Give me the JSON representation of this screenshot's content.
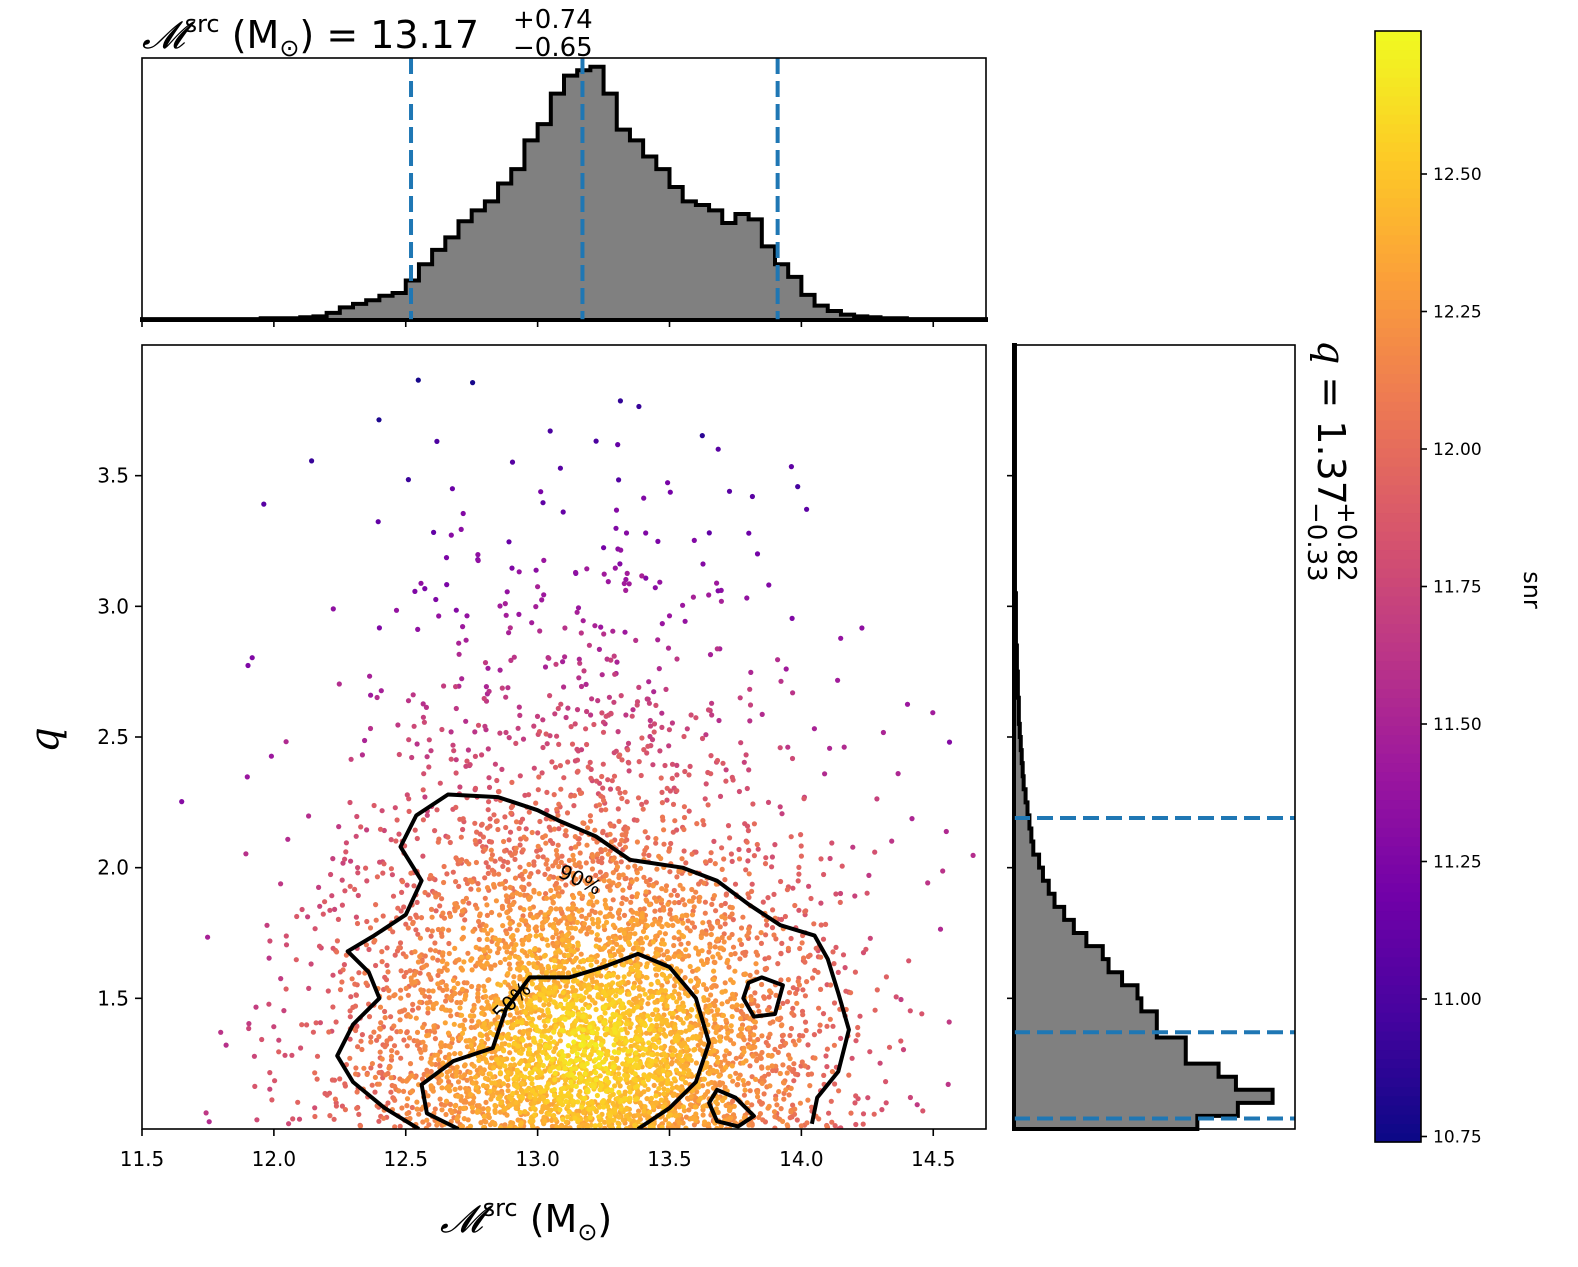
{
  "chart_data": [
    {
      "type": "histogram",
      "panel": "top-marginal",
      "title": {
        "symbol": "𝓜",
        "sup": "src",
        "unit": " (M",
        "unit_sub": "⊙",
        "unit_close": ")",
        "eq": " = ",
        "value": "13.17",
        "plus": "+0.74",
        "minus": "−0.65"
      },
      "bin_edges": [
        11.5,
        11.55,
        11.6,
        11.65,
        11.7,
        11.75,
        11.8,
        11.85,
        11.9,
        11.95,
        12.0,
        12.05,
        12.1,
        12.15,
        12.2,
        12.25,
        12.3,
        12.35,
        12.4,
        12.45,
        12.5,
        12.55,
        12.6,
        12.65,
        12.7,
        12.75,
        12.8,
        12.85,
        12.9,
        12.95,
        13.0,
        13.05,
        13.1,
        13.15,
        13.2,
        13.25,
        13.3,
        13.35,
        13.4,
        13.45,
        13.5,
        13.55,
        13.6,
        13.65,
        13.7,
        13.75,
        13.8,
        13.85,
        13.9,
        13.95,
        14.0,
        14.05,
        14.1,
        14.15,
        14.2,
        14.25,
        14.3,
        14.35,
        14.4,
        14.45,
        14.5,
        14.55,
        14.6,
        14.65,
        14.7
      ],
      "counts": [
        1,
        1,
        1,
        1,
        1,
        1,
        1,
        1,
        1,
        2,
        2,
        2,
        3,
        4,
        8,
        14,
        18,
        22,
        27,
        30,
        44,
        62,
        78,
        92,
        110,
        122,
        132,
        152,
        168,
        200,
        218,
        252,
        272,
        278,
        282,
        252,
        212,
        200,
        182,
        168,
        148,
        132,
        128,
        122,
        108,
        118,
        112,
        82,
        62,
        48,
        28,
        16,
        10,
        6,
        4,
        3,
        2,
        2,
        1,
        1,
        1,
        1,
        1,
        1
      ],
      "ylim": [
        0,
        285
      ],
      "xlim": [
        11.5,
        14.7
      ],
      "quantile_lines": [
        12.52,
        13.17,
        13.91
      ],
      "xticks": [
        11.5,
        12.0,
        12.5,
        13.0,
        13.5,
        14.0,
        14.5
      ]
    },
    {
      "type": "histogram",
      "panel": "right-marginal",
      "orientation": "horizontal",
      "title": {
        "symbol": "q",
        "eq": " = ",
        "value": "1.37",
        "plus": "+0.82",
        "minus": "−0.33"
      },
      "bin_edges": [
        1.0,
        1.05,
        1.1,
        1.15,
        1.2,
        1.25,
        1.3,
        1.35,
        1.4,
        1.45,
        1.5,
        1.55,
        1.6,
        1.65,
        1.7,
        1.75,
        1.8,
        1.85,
        1.9,
        1.95,
        2.0,
        2.05,
        2.1,
        2.15,
        2.2,
        2.25,
        2.3,
        2.35,
        2.4,
        2.45,
        2.5,
        2.55,
        2.6,
        2.65,
        2.7,
        2.75,
        2.8,
        2.85,
        2.9,
        2.95,
        3.0,
        3.05,
        3.1,
        3.15,
        3.2,
        3.25,
        3.3,
        3.35,
        3.4,
        3.45,
        3.5,
        3.55,
        3.6,
        3.65,
        3.7,
        3.75,
        3.8,
        3.85,
        3.9,
        3.95,
        4.0
      ],
      "counts": [
        190,
        232,
        268,
        230,
        212,
        178,
        178,
        148,
        148,
        132,
        128,
        112,
        98,
        92,
        75,
        62,
        52,
        42,
        36,
        30,
        26,
        20,
        18,
        16,
        14,
        12,
        10,
        9,
        8,
        7,
        6,
        5,
        5,
        4,
        4,
        3,
        3,
        2,
        2,
        2,
        2,
        1,
        1,
        1,
        1,
        1,
        1,
        1,
        1,
        1,
        1,
        1,
        1,
        1,
        1,
        1,
        1,
        1,
        1,
        1
      ],
      "xlim": [
        0,
        285
      ],
      "ylim": [
        1.0,
        4.0
      ],
      "quantile_lines": [
        1.04,
        1.37,
        2.19
      ]
    },
    {
      "type": "scatter",
      "panel": "joint",
      "xlabel": {
        "symbol": "𝓜",
        "sup": "src",
        "unit": " (M",
        "unit_sub": "⊙",
        "unit_close": ")"
      },
      "ylabel": "q",
      "xlim": [
        11.5,
        14.7
      ],
      "ylim": [
        1.0,
        4.0
      ],
      "xticks": [
        "11.5",
        "12.0",
        "12.5",
        "13.0",
        "13.5",
        "14.0",
        "14.5"
      ],
      "yticks": [
        "1.5",
        "2.0",
        "2.5",
        "3.0",
        "3.5"
      ],
      "ytick_values": [
        1.5,
        2.0,
        2.5,
        3.0,
        3.5
      ],
      "xtick_values": [
        11.5,
        12.0,
        12.5,
        13.0,
        13.5,
        14.0,
        14.5
      ],
      "color_by": "snr",
      "colormap": [
        "#0d0887",
        "#46039f",
        "#7201a8",
        "#9c179e",
        "#bd3786",
        "#d8576b",
        "#ed7953",
        "#fb9f3a",
        "#fdca26",
        "#f0f921"
      ],
      "contours": [
        {
          "label": "90%",
          "label_pos": [
            13.15,
            1.93
          ],
          "label_angle": 25,
          "points": [
            [
              12.55,
              1.0
            ],
            [
              12.42,
              1.08
            ],
            [
              12.3,
              1.18
            ],
            [
              12.24,
              1.28
            ],
            [
              12.3,
              1.4
            ],
            [
              12.4,
              1.5
            ],
            [
              12.36,
              1.6
            ],
            [
              12.28,
              1.68
            ],
            [
              12.38,
              1.74
            ],
            [
              12.5,
              1.82
            ],
            [
              12.56,
              1.95
            ],
            [
              12.48,
              2.08
            ],
            [
              12.54,
              2.2
            ],
            [
              12.66,
              2.28
            ],
            [
              12.85,
              2.27
            ],
            [
              13.0,
              2.22
            ],
            [
              13.08,
              2.18
            ],
            [
              13.22,
              2.12
            ],
            [
              13.35,
              2.03
            ],
            [
              13.55,
              2.0
            ],
            [
              13.68,
              1.95
            ],
            [
              13.8,
              1.86
            ],
            [
              13.92,
              1.78
            ],
            [
              14.05,
              1.74
            ],
            [
              14.1,
              1.65
            ],
            [
              14.14,
              1.52
            ],
            [
              14.18,
              1.38
            ],
            [
              14.14,
              1.22
            ],
            [
              14.06,
              1.12
            ],
            [
              14.04,
              1.02
            ]
          ]
        },
        {
          "label": "50%",
          "label_pos": [
            12.92,
            1.47
          ],
          "label_angle": -45,
          "points": [
            [
              12.7,
              1.0
            ],
            [
              12.58,
              1.06
            ],
            [
              12.56,
              1.17
            ],
            [
              12.68,
              1.26
            ],
            [
              12.83,
              1.31
            ],
            [
              12.88,
              1.46
            ],
            [
              12.97,
              1.58
            ],
            [
              13.12,
              1.58
            ],
            [
              13.25,
              1.62
            ],
            [
              13.38,
              1.67
            ],
            [
              13.5,
              1.62
            ],
            [
              13.6,
              1.5
            ],
            [
              13.65,
              1.33
            ],
            [
              13.6,
              1.18
            ],
            [
              13.5,
              1.08
            ],
            [
              13.38,
              1.0
            ]
          ]
        },
        {
          "points": [
            [
              13.85,
              1.58
            ],
            [
              13.93,
              1.55
            ],
            [
              13.9,
              1.44
            ],
            [
              13.82,
              1.43
            ],
            [
              13.78,
              1.5
            ],
            [
              13.8,
              1.56
            ]
          ]
        },
        {
          "points": [
            [
              13.68,
              1.15
            ],
            [
              13.75,
              1.12
            ],
            [
              13.82,
              1.05
            ],
            [
              13.76,
              1.01
            ],
            [
              13.68,
              1.03
            ],
            [
              13.65,
              1.1
            ]
          ]
        }
      ]
    },
    {
      "type": "colorbar",
      "label": "snr",
      "range": [
        10.74,
        12.76
      ],
      "ticks": [
        "10.75",
        "11.00",
        "11.25",
        "11.50",
        "11.75",
        "12.00",
        "12.25",
        "12.50"
      ],
      "tick_values": [
        10.75,
        11.0,
        11.25,
        11.5,
        11.75,
        12.0,
        12.25,
        12.5
      ],
      "colormap": [
        "#0d0887",
        "#46039f",
        "#7201a8",
        "#9c179e",
        "#bd3786",
        "#d8576b",
        "#ed7953",
        "#fb9f3a",
        "#fdca26",
        "#f0f921"
      ]
    }
  ],
  "colors": {
    "hist_fill": "#808080",
    "quantile": "#1f77b4",
    "contour": "#000000"
  }
}
